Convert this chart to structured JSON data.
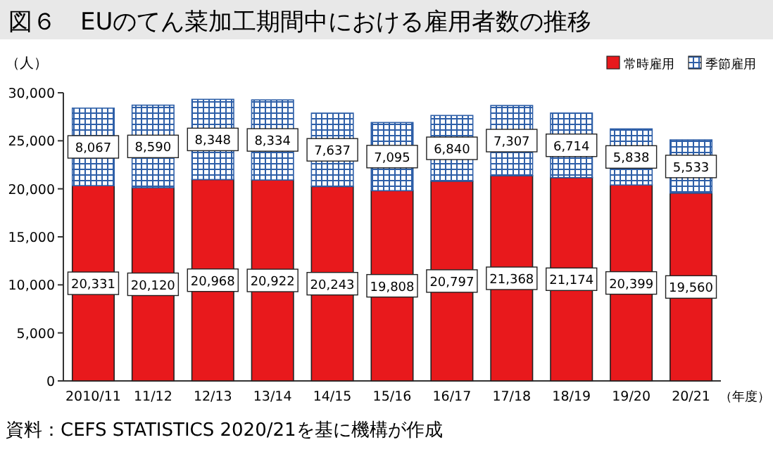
{
  "chart_data": {
    "type": "bar",
    "stacked": true,
    "title": "図６　EUのてん菜加工期間中における雇用者数の推移",
    "ylabel": "（人）",
    "xlabel": "（年度）",
    "categories": [
      "2010/11",
      "11/12",
      "12/13",
      "13/14",
      "14/15",
      "15/16",
      "16/17",
      "17/18",
      "18/19",
      "19/20",
      "20/21"
    ],
    "series": [
      {
        "name": "常時雇用",
        "color": "#e8191c",
        "values": [
          20331,
          20120,
          20968,
          20922,
          20243,
          19808,
          20797,
          21368,
          21174,
          20399,
          19560
        ],
        "value_labels": [
          "20,331",
          "20,120",
          "20,968",
          "20,922",
          "20,243",
          "19,808",
          "20,797",
          "21,368",
          "21,174",
          "20,399",
          "19,560"
        ]
      },
      {
        "name": "季節雇用",
        "color": "#2e5fa8",
        "values": [
          8067,
          8590,
          8348,
          8334,
          7637,
          7095,
          6840,
          7307,
          6714,
          5838,
          5533
        ],
        "value_labels": [
          "8,067",
          "8,590",
          "8,348",
          "8,334",
          "7,637",
          "7,095",
          "6,840",
          "7,307",
          "6,714",
          "5,838",
          "5,533"
        ]
      }
    ],
    "ylim": [
      0,
      30000
    ],
    "yticks": [
      0,
      {
        "value": 5000,
        "label": "5,000"
      },
      {
        "value": 10000,
        "label": "10,000"
      },
      {
        "value": 15000,
        "label": "15,000"
      },
      {
        "value": 20000,
        "label": "20,000"
      },
      {
        "value": 25000,
        "label": "25,000"
      },
      {
        "value": 30000,
        "label": "30,000"
      }
    ],
    "grid": false,
    "legend": "top right",
    "annotations": [
      "資料：CEFS STATISTICS 2020/21を基に機構が作成"
    ]
  }
}
